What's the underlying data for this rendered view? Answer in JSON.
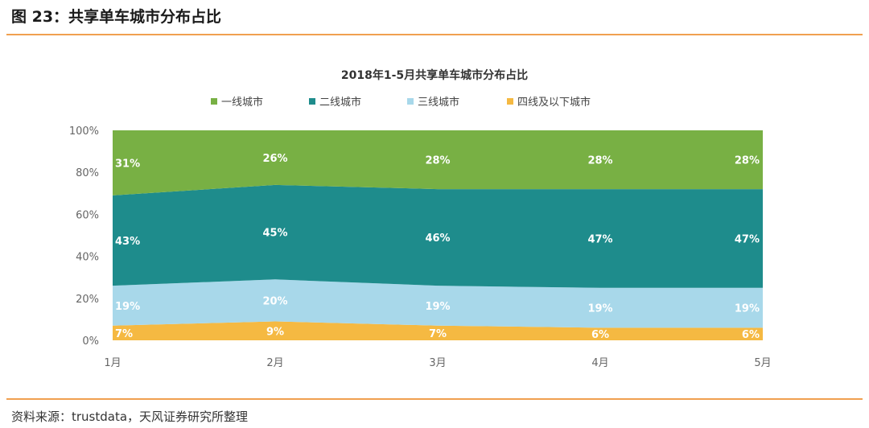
{
  "figure": {
    "title": "图 23：共享单车城市分布占比",
    "source": "资料来源：trustdata，天风证券研究所整理"
  },
  "colors": {
    "tier1": "#78b044",
    "tier2": "#1e8c8c",
    "tier3": "#a8d8ea",
    "tier4": "#f5b942",
    "accent_rule": "#f0a050"
  },
  "chart_data": {
    "type": "area",
    "stacked": true,
    "title": "2018年1-5月共享单车城市分布占比",
    "x": [
      "1月",
      "2月",
      "3月",
      "4月",
      "5月"
    ],
    "ylim": [
      0,
      100
    ],
    "yticks": [
      "0%",
      "20%",
      "40%",
      "60%",
      "80%",
      "100%"
    ],
    "grid": false,
    "legend_position": "top",
    "series": [
      {
        "name": "四线及以下城市",
        "values": [
          7,
          9,
          7,
          6,
          6
        ],
        "color": "#f5b942",
        "labels": [
          "7%",
          "9%",
          "7%",
          "6%",
          "6%"
        ]
      },
      {
        "name": "三线城市",
        "values": [
          19,
          20,
          19,
          19,
          19
        ],
        "color": "#a8d8ea",
        "labels": [
          "19%",
          "20%",
          "19%",
          "19%",
          "19%"
        ]
      },
      {
        "name": "二线城市",
        "values": [
          43,
          45,
          46,
          47,
          47
        ],
        "color": "#1e8c8c",
        "labels": [
          "43%",
          "45%",
          "46%",
          "47%",
          "47%"
        ]
      },
      {
        "name": "一线城市",
        "values": [
          31,
          26,
          28,
          28,
          28
        ],
        "color": "#78b044",
        "labels": [
          "31%",
          "26%",
          "28%",
          "28%",
          "28%"
        ]
      }
    ],
    "legend_order": [
      "一线城市",
      "二线城市",
      "三线城市",
      "四线及以下城市"
    ]
  }
}
